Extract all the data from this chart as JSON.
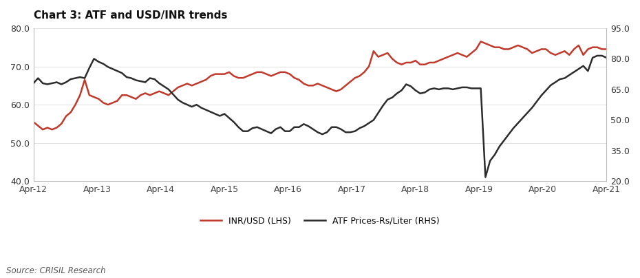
{
  "title": "Chart 3: ATF and USD/INR trends",
  "source": "Source: CRISIL Research",
  "lhs_label": "INR/USD (LHS)",
  "rhs_label": "ATF Prices-Rs/Liter (RHS)",
  "lhs_color": "#C0392B",
  "rhs_color": "#2C2C2C",
  "lhs_ylim": [
    40.0,
    80.0
  ],
  "rhs_ylim": [
    20.0,
    95.0
  ],
  "lhs_yticks": [
    40.0,
    50.0,
    60.0,
    70.0,
    80.0
  ],
  "rhs_yticks": [
    20.0,
    35.0,
    50.0,
    65.0,
    80.0,
    95.0
  ],
  "xtick_labels": [
    "Apr-12",
    "Apr-13",
    "Apr-14",
    "Apr-15",
    "Apr-16",
    "Apr-17",
    "Apr-18",
    "Apr-19",
    "Apr-20",
    "Apr-21"
  ],
  "background_color": "#FFFFFF",
  "inr_usd": [
    55.5,
    54.5,
    53.5,
    54.0,
    53.5,
    54.0,
    55.0,
    57.0,
    58.0,
    60.0,
    62.5,
    66.5,
    62.5,
    62.0,
    61.5,
    60.5,
    60.0,
    60.5,
    61.0,
    62.5,
    62.5,
    62.0,
    61.5,
    62.5,
    63.0,
    62.5,
    63.0,
    63.5,
    63.0,
    62.5,
    63.5,
    64.5,
    65.0,
    65.5,
    65.0,
    65.5,
    66.0,
    66.5,
    67.5,
    68.0,
    68.0,
    68.0,
    68.5,
    67.5,
    67.0,
    67.0,
    67.5,
    68.0,
    68.5,
    68.5,
    68.0,
    67.5,
    68.0,
    68.5,
    68.5,
    68.0,
    67.0,
    66.5,
    65.5,
    65.0,
    65.0,
    65.5,
    65.0,
    64.5,
    64.0,
    63.5,
    64.0,
    65.0,
    66.0,
    67.0,
    67.5,
    68.5,
    70.0,
    74.0,
    72.5,
    73.0,
    73.5,
    72.0,
    71.0,
    70.5,
    71.0,
    71.0,
    71.5,
    70.5,
    70.5,
    71.0,
    71.0,
    71.5,
    72.0,
    72.5,
    73.0,
    73.5,
    73.0,
    72.5,
    73.5,
    74.5,
    76.5,
    76.0,
    75.5,
    75.0,
    75.0,
    74.5,
    74.5,
    75.0,
    75.5,
    75.0,
    74.5,
    73.5,
    74.0,
    74.5,
    74.5,
    73.5,
    73.0,
    73.5,
    74.0,
    73.0,
    74.5,
    75.5,
    73.0,
    74.5,
    75.0,
    75.0,
    74.5,
    74.5
  ],
  "atf_rs": [
    68.0,
    70.5,
    68.0,
    67.5,
    68.0,
    68.5,
    67.5,
    68.5,
    70.0,
    70.5,
    71.0,
    70.5,
    75.5,
    80.0,
    78.5,
    77.5,
    76.0,
    75.0,
    74.0,
    73.0,
    71.0,
    70.5,
    69.5,
    69.0,
    68.5,
    70.5,
    70.0,
    68.0,
    66.5,
    65.0,
    62.5,
    60.0,
    58.5,
    57.5,
    56.5,
    57.5,
    56.0,
    55.0,
    54.0,
    53.0,
    52.0,
    53.0,
    51.0,
    49.0,
    46.5,
    44.5,
    44.5,
    46.0,
    46.5,
    45.5,
    44.5,
    43.5,
    45.5,
    46.5,
    44.5,
    44.5,
    46.5,
    46.5,
    48.0,
    47.0,
    45.5,
    44.0,
    43.0,
    44.0,
    46.5,
    46.5,
    45.5,
    44.0,
    44.0,
    44.5,
    46.0,
    47.0,
    48.5,
    50.0,
    53.5,
    57.0,
    60.0,
    61.0,
    63.0,
    64.5,
    67.5,
    66.5,
    64.5,
    63.0,
    63.5,
    65.0,
    65.5,
    65.0,
    65.5,
    65.5,
    65.0,
    65.5,
    66.0,
    66.0,
    65.5,
    65.5,
    65.5,
    22.0,
    30.0,
    33.0,
    37.0,
    40.0,
    43.0,
    46.0,
    48.5,
    51.0,
    53.5,
    56.0,
    59.0,
    62.0,
    64.5,
    67.0,
    68.5,
    70.0,
    70.5,
    72.0,
    73.5,
    75.0,
    76.5,
    74.0,
    80.5,
    81.5,
    81.5,
    80.5
  ]
}
